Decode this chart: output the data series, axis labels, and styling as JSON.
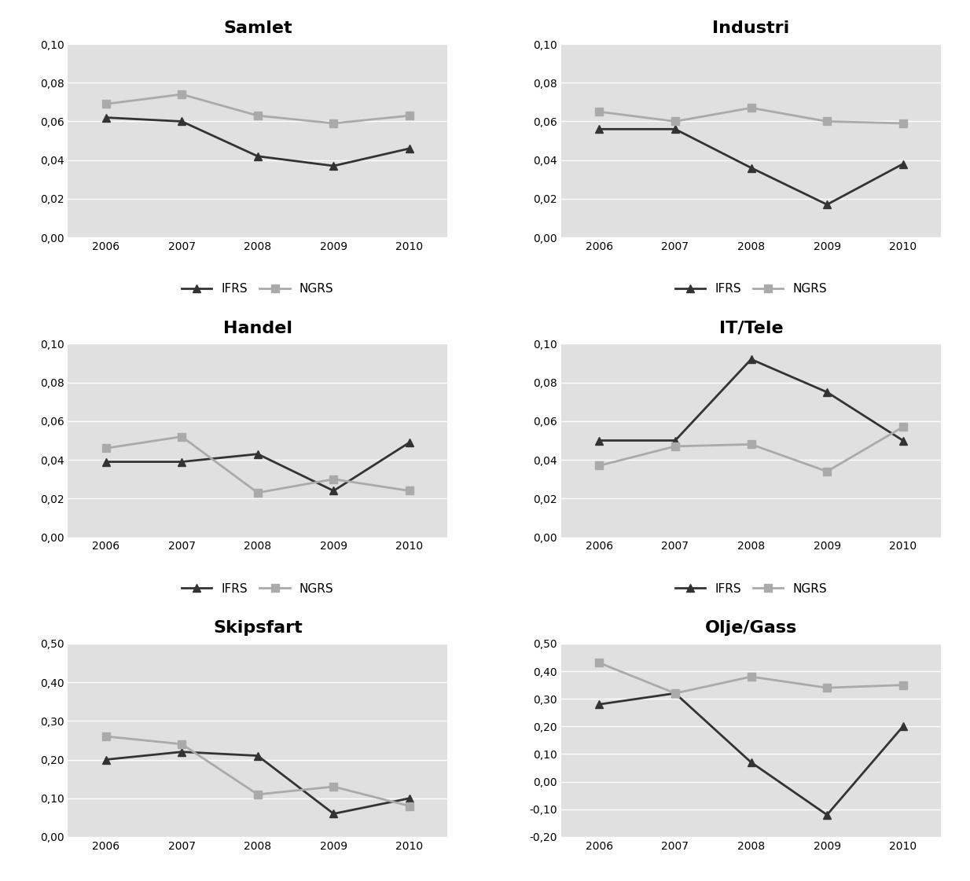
{
  "years": [
    2006,
    2007,
    2008,
    2009,
    2010
  ],
  "panels": [
    {
      "title": "Samlet",
      "ifrs": [
        0.062,
        0.06,
        0.042,
        0.037,
        0.046
      ],
      "ngrs": [
        0.069,
        0.074,
        0.063,
        0.059,
        0.063
      ],
      "ylim": [
        0.0,
        0.1
      ],
      "yticks": [
        0.0,
        0.02,
        0.04,
        0.06,
        0.08,
        0.1
      ]
    },
    {
      "title": "Industri",
      "ifrs": [
        0.056,
        0.056,
        0.036,
        0.017,
        0.038
      ],
      "ngrs": [
        0.065,
        0.06,
        0.067,
        0.06,
        0.059
      ],
      "ylim": [
        0.0,
        0.1
      ],
      "yticks": [
        0.0,
        0.02,
        0.04,
        0.06,
        0.08,
        0.1
      ]
    },
    {
      "title": "Handel",
      "ifrs": [
        0.039,
        0.039,
        0.043,
        0.024,
        0.049
      ],
      "ngrs": [
        0.046,
        0.052,
        0.023,
        0.03,
        0.024
      ],
      "ylim": [
        0.0,
        0.1
      ],
      "yticks": [
        0.0,
        0.02,
        0.04,
        0.06,
        0.08,
        0.1
      ]
    },
    {
      "title": "IT/Tele",
      "ifrs": [
        0.05,
        0.05,
        0.092,
        0.075,
        0.05
      ],
      "ngrs": [
        0.037,
        0.047,
        0.048,
        0.034,
        0.057
      ],
      "ylim": [
        0.0,
        0.1
      ],
      "yticks": [
        0.0,
        0.02,
        0.04,
        0.06,
        0.08,
        0.1
      ]
    },
    {
      "title": "Skipsfart",
      "ifrs": [
        0.2,
        0.22,
        0.21,
        0.06,
        0.1
      ],
      "ngrs": [
        0.26,
        0.24,
        0.11,
        0.13,
        0.08
      ],
      "ylim": [
        0.0,
        0.5
      ],
      "yticks": [
        0.0,
        0.1,
        0.2,
        0.3,
        0.4,
        0.5
      ]
    },
    {
      "title": "Olje/Gass",
      "ifrs": [
        0.28,
        0.32,
        0.07,
        -0.12,
        0.2
      ],
      "ngrs": [
        0.43,
        0.32,
        0.38,
        0.34,
        0.35
      ],
      "ylim": [
        -0.2,
        0.5
      ],
      "yticks": [
        -0.2,
        -0.1,
        0.0,
        0.1,
        0.2,
        0.3,
        0.4,
        0.5
      ]
    }
  ],
  "ifrs_color": "#333333",
  "ngrs_color": "#aaaaaa",
  "background_color": "#e0e0e0",
  "outer_background": "#ffffff",
  "grid_color": "#ffffff",
  "title_fontsize": 16,
  "tick_fontsize": 10,
  "legend_fontsize": 11,
  "line_width": 2.0,
  "marker_ifrs": "^",
  "marker_ngrs": "s",
  "marker_size": 7
}
